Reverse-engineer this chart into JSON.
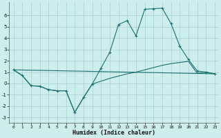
{
  "xlabel": "Humidex (Indice chaleur)",
  "bg_color": "#ceeeed",
  "grid_color": "#aad4d3",
  "line_color": "#1a7070",
  "xlim": [
    -0.5,
    23.5
  ],
  "ylim": [
    -3.5,
    7.2
  ],
  "xticks": [
    0,
    1,
    2,
    3,
    4,
    5,
    6,
    7,
    8,
    9,
    10,
    11,
    12,
    13,
    14,
    15,
    16,
    17,
    18,
    19,
    20,
    21,
    22,
    23
  ],
  "yticks": [
    -3,
    -2,
    -1,
    0,
    1,
    2,
    3,
    4,
    5,
    6
  ],
  "series0_x": [
    0,
    1,
    2,
    3,
    4,
    5,
    6,
    7,
    8,
    9,
    10,
    11,
    12,
    13,
    14,
    15,
    16,
    17,
    18,
    19,
    20,
    21,
    22,
    23
  ],
  "series0_y": [
    1.2,
    0.7,
    -0.2,
    -0.25,
    -0.55,
    -0.65,
    -0.65,
    -2.55,
    -1.25,
    -0.05,
    1.35,
    2.75,
    5.2,
    5.55,
    4.2,
    6.55,
    6.6,
    6.65,
    5.3,
    3.3,
    2.1,
    1.1,
    1.0,
    0.85
  ],
  "series1_x": [
    0,
    1,
    2,
    3,
    4,
    5,
    6,
    7,
    8,
    9,
    10,
    11,
    12,
    13,
    14,
    15,
    16,
    17,
    18,
    19,
    20,
    21,
    22,
    23
  ],
  "series1_y": [
    1.2,
    0.7,
    -0.2,
    -0.25,
    -0.55,
    -0.65,
    -0.65,
    -2.55,
    -1.25,
    -0.05,
    0.2,
    0.45,
    0.65,
    0.85,
    1.0,
    1.2,
    1.4,
    1.6,
    1.75,
    1.85,
    1.95,
    0.9,
    1.0,
    0.85
  ],
  "series2_x": [
    0,
    23
  ],
  "series2_y": [
    1.2,
    0.85
  ]
}
